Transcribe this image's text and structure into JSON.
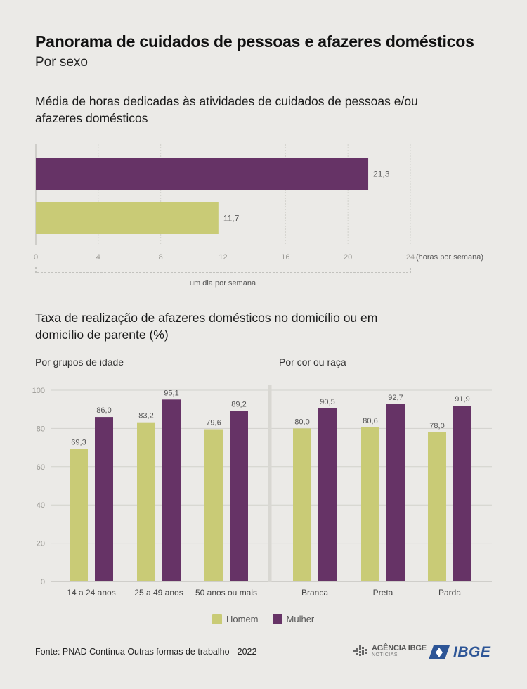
{
  "title": "Panorama de cuidados de pessoas e afazeres domésticos",
  "subtitle": "Por sexo",
  "colors": {
    "homem": "#c9cb76",
    "mulher": "#663366",
    "grid": "#d2d1cc",
    "axis": "#b3b2ad",
    "tick": "#9a9994",
    "label": "#555555"
  },
  "chart_data": [
    {
      "type": "bar",
      "orientation": "horizontal",
      "title": "Média de horas dedicadas às atividades de cuidados de pessoas e/ou afazeres domésticos",
      "series": [
        {
          "name": "Mulher",
          "values": [
            21.3
          ],
          "labels": [
            "21,3"
          ]
        },
        {
          "name": "Homem",
          "values": [
            11.7
          ],
          "labels": [
            "11,7"
          ]
        }
      ],
      "xlim": [
        0,
        24
      ],
      "xticks": [
        "0",
        "4",
        "8",
        "12",
        "16",
        "20",
        "24"
      ],
      "xunit": "(horas por semana)",
      "annotation": "um dia por semana",
      "grid": true
    },
    {
      "type": "bar",
      "title": "Taxa de realização de afazeres domésticos no domicílio ou em domicílio de parente (%)",
      "subtitle": "Por grupos de idade",
      "categories": [
        "14 a 24 anos",
        "25 a 49 anos",
        "50 anos ou mais"
      ],
      "series": [
        {
          "name": "Homem",
          "values": [
            69.3,
            83.2,
            79.6
          ],
          "labels": [
            "69,3",
            "83,2",
            "79,6"
          ]
        },
        {
          "name": "Mulher",
          "values": [
            86.0,
            95.1,
            89.2
          ],
          "labels": [
            "86,0",
            "95,1",
            "89,2"
          ]
        }
      ],
      "ylim": [
        0,
        100
      ],
      "yticks": [
        "0",
        "20",
        "40",
        "60",
        "80",
        "100"
      ],
      "grid": true
    },
    {
      "type": "bar",
      "subtitle": "Por cor ou raça",
      "categories": [
        "Branca",
        "Preta",
        "Parda"
      ],
      "series": [
        {
          "name": "Homem",
          "values": [
            80.0,
            80.6,
            78.0
          ],
          "labels": [
            "80,0",
            "80,6",
            "78,0"
          ]
        },
        {
          "name": "Mulher",
          "values": [
            90.5,
            92.7,
            91.9
          ],
          "labels": [
            "90,5",
            "92,7",
            "91,9"
          ]
        }
      ],
      "ylim": [
        0,
        100
      ],
      "grid": true
    }
  ],
  "legend": [
    {
      "name": "Homem",
      "color": "#c9cb76"
    },
    {
      "name": "Mulher",
      "color": "#663366"
    }
  ],
  "footer": {
    "source": "Fonte: PNAD Contínua Outras formas de trabalho - 2022",
    "logo_agencia": "AGÊNCIA IBGE",
    "logo_agencia_sub": "NOTÍCIAS",
    "logo_ibge": "IBGE"
  }
}
